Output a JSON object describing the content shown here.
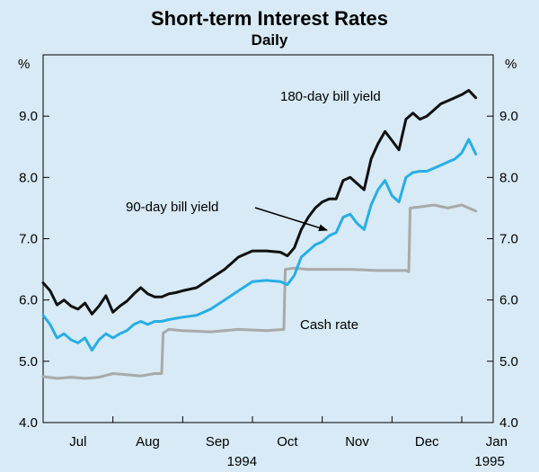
{
  "chart_data": {
    "type": "line",
    "title": "Short-term Interest Rates",
    "subtitle": "Daily",
    "ylabel_left": "%",
    "ylabel_right": "%",
    "ylim": [
      4.0,
      10.0
    ],
    "yticks": [
      "4.0",
      "5.0",
      "6.0",
      "7.0",
      "8.0",
      "9.0"
    ],
    "x_range_months": [
      0,
      6.45
    ],
    "x_month_labels": [
      "Jul",
      "Aug",
      "Sep",
      "Oct",
      "Nov",
      "Dec",
      "Jan"
    ],
    "x_year_labels": [
      {
        "text": "1994",
        "month_index": 2.85
      },
      {
        "text": "1995",
        "month_index": 6.4
      }
    ],
    "series": [
      {
        "name": "180-day bill yield",
        "color": "#111111",
        "x": [
          0,
          0.1,
          0.2,
          0.3,
          0.4,
          0.5,
          0.6,
          0.7,
          0.8,
          0.9,
          1.0,
          1.1,
          1.2,
          1.3,
          1.4,
          1.5,
          1.6,
          1.7,
          1.8,
          1.9,
          2.0,
          2.2,
          2.4,
          2.6,
          2.8,
          3.0,
          3.2,
          3.4,
          3.5,
          3.6,
          3.7,
          3.8,
          3.9,
          4.0,
          4.1,
          4.2,
          4.3,
          4.4,
          4.5,
          4.6,
          4.7,
          4.8,
          4.9,
          5.0,
          5.1,
          5.2,
          5.3,
          5.4,
          5.5,
          5.6,
          5.7,
          5.8,
          5.9,
          6.0,
          6.1,
          6.2
        ],
        "values": [
          6.28,
          6.15,
          5.92,
          6.0,
          5.9,
          5.85,
          5.95,
          5.77,
          5.9,
          6.07,
          5.8,
          5.9,
          5.98,
          6.1,
          6.2,
          6.1,
          6.05,
          6.05,
          6.1,
          6.12,
          6.15,
          6.2,
          6.35,
          6.5,
          6.7,
          6.8,
          6.8,
          6.78,
          6.72,
          6.85,
          7.15,
          7.35,
          7.5,
          7.6,
          7.65,
          7.65,
          7.95,
          8.0,
          7.9,
          7.8,
          8.3,
          8.55,
          8.75,
          8.6,
          8.45,
          8.95,
          9.05,
          8.95,
          9.0,
          9.1,
          9.2,
          9.25,
          9.3,
          9.35,
          9.42,
          9.3
        ]
      },
      {
        "name": "90-day bill yield",
        "color": "#27aee3",
        "x": [
          0,
          0.1,
          0.2,
          0.3,
          0.4,
          0.5,
          0.6,
          0.7,
          0.8,
          0.9,
          1.0,
          1.1,
          1.2,
          1.3,
          1.4,
          1.5,
          1.6,
          1.7,
          1.8,
          1.9,
          2.0,
          2.2,
          2.4,
          2.6,
          2.8,
          3.0,
          3.2,
          3.4,
          3.5,
          3.6,
          3.7,
          3.8,
          3.9,
          4.0,
          4.1,
          4.2,
          4.3,
          4.4,
          4.5,
          4.6,
          4.7,
          4.8,
          4.9,
          5.0,
          5.1,
          5.2,
          5.3,
          5.4,
          5.5,
          5.6,
          5.7,
          5.8,
          5.9,
          6.0,
          6.1,
          6.2
        ],
        "values": [
          5.75,
          5.6,
          5.38,
          5.45,
          5.35,
          5.3,
          5.38,
          5.18,
          5.35,
          5.45,
          5.38,
          5.45,
          5.5,
          5.6,
          5.65,
          5.6,
          5.65,
          5.65,
          5.68,
          5.7,
          5.72,
          5.75,
          5.85,
          6.0,
          6.15,
          6.3,
          6.32,
          6.3,
          6.25,
          6.4,
          6.7,
          6.8,
          6.9,
          6.95,
          7.05,
          7.1,
          7.35,
          7.4,
          7.25,
          7.15,
          7.55,
          7.8,
          7.95,
          7.7,
          7.6,
          8.0,
          8.08,
          8.1,
          8.1,
          8.15,
          8.2,
          8.25,
          8.3,
          8.4,
          8.62,
          8.38
        ]
      },
      {
        "name": "Cash rate",
        "color": "#a9a9a9",
        "x": [
          0,
          0.2,
          0.4,
          0.6,
          0.8,
          1.0,
          1.2,
          1.4,
          1.6,
          1.7,
          1.72,
          1.8,
          2.0,
          2.4,
          2.8,
          3.2,
          3.45,
          3.47,
          3.6,
          3.8,
          4.0,
          4.4,
          4.8,
          5.2,
          5.24,
          5.26,
          5.4,
          5.6,
          5.8,
          6.0,
          6.2
        ],
        "values": [
          4.75,
          4.72,
          4.74,
          4.72,
          4.74,
          4.8,
          4.78,
          4.76,
          4.8,
          4.8,
          5.46,
          5.52,
          5.5,
          5.48,
          5.52,
          5.5,
          5.52,
          6.5,
          6.52,
          6.5,
          6.5,
          6.5,
          6.48,
          6.48,
          6.46,
          7.5,
          7.52,
          7.55,
          7.5,
          7.55,
          7.45
        ]
      }
    ],
    "annotations": [
      {
        "text": "180-day bill yield",
        "series": "180-day bill yield"
      },
      {
        "text": "90-day bill yield",
        "series": "90-day bill yield",
        "arrow": true
      },
      {
        "text": "Cash rate",
        "series": "Cash rate"
      }
    ]
  }
}
